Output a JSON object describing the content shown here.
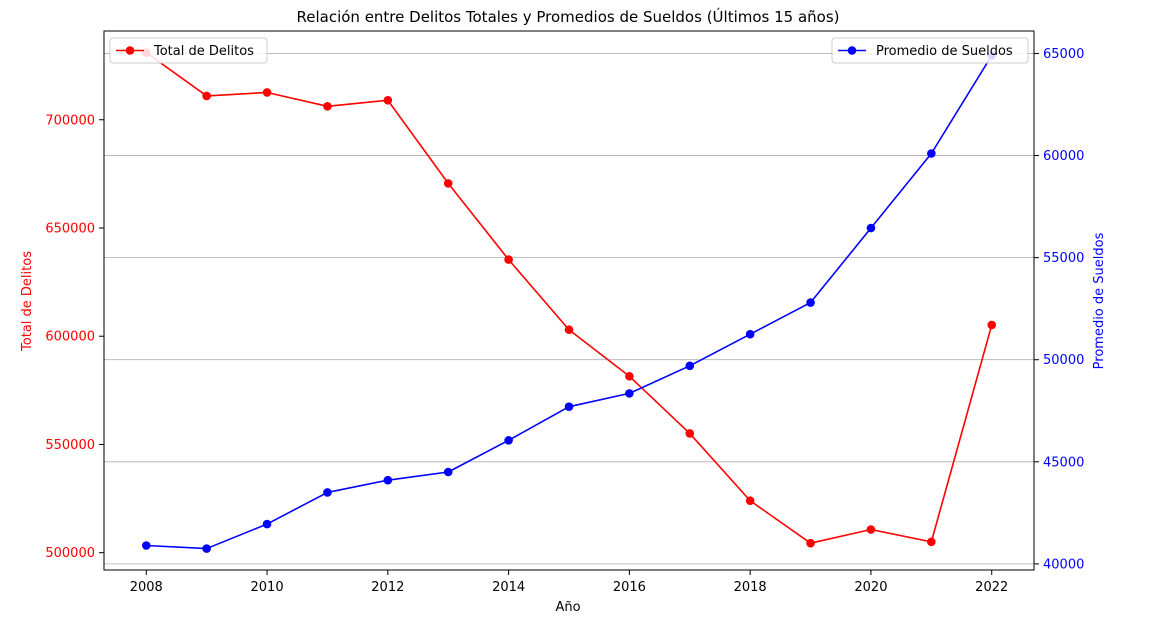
{
  "chart_data": {
    "type": "line",
    "title": "Relación entre Delitos Totales y Promedios de Sueldos (Últimos 15 años)",
    "xlabel": "Año",
    "ylabel_left": "Total de Delitos",
    "ylabel_right": "Promedio de Sueldos",
    "x": [
      2008,
      2009,
      2010,
      2011,
      2012,
      2013,
      2014,
      2015,
      2016,
      2017,
      2018,
      2019,
      2020,
      2021,
      2022
    ],
    "x_ticks": [
      2008,
      2010,
      2012,
      2014,
      2016,
      2018,
      2020,
      2022
    ],
    "xlim": [
      2007.3,
      2022.7
    ],
    "grid": "horizontal, right axis",
    "series": [
      {
        "name": "Total de Delitos",
        "axis": "left",
        "color": "#ff0000",
        "values": [
          731000,
          711000,
          712600,
          706200,
          709000,
          670600,
          635400,
          603000,
          581500,
          555100,
          524000,
          504400,
          510700,
          505000,
          605200
        ]
      },
      {
        "name": "Promedio de Sueldos",
        "axis": "right",
        "color": "#0000ff",
        "values": [
          40900,
          40750,
          41950,
          43500,
          44100,
          44500,
          46050,
          47700,
          48350,
          49700,
          51250,
          52800,
          56450,
          60100,
          64900
        ]
      }
    ],
    "y_left": {
      "lim": [
        492000,
        741000
      ],
      "ticks": [
        500000,
        550000,
        600000,
        650000,
        700000
      ],
      "color": "#ff0000"
    },
    "y_right": {
      "lim": [
        39700,
        66100
      ],
      "ticks": [
        40000,
        45000,
        50000,
        55000,
        60000,
        65000
      ],
      "color": "#0000ff"
    },
    "legends": [
      {
        "series": 0,
        "placement": "upper-left"
      },
      {
        "series": 1,
        "placement": "upper-right"
      }
    ]
  }
}
